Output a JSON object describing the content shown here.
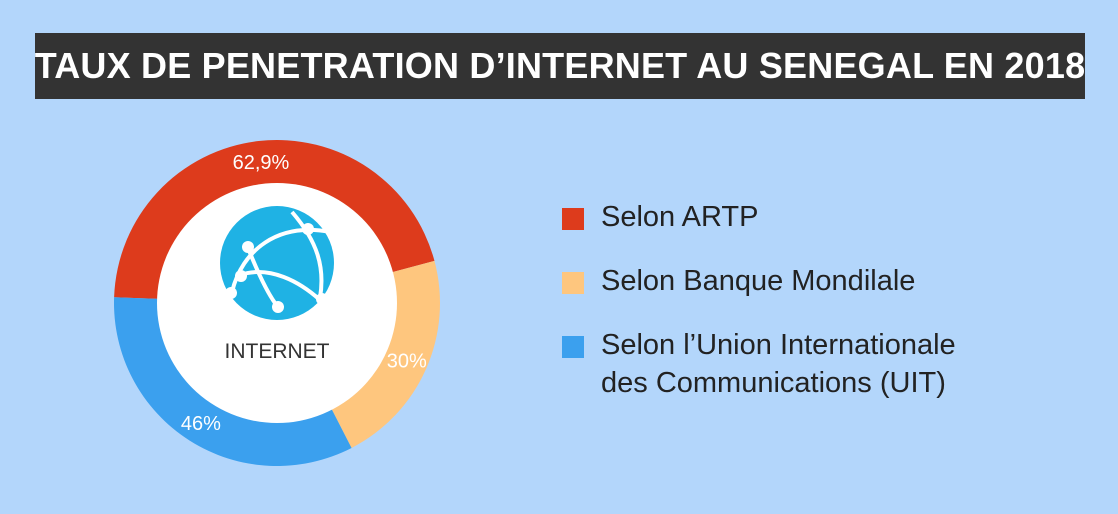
{
  "header": {
    "title": "TAUX DE PENETRATION D’INTERNET AU SENEGAL EN 2018"
  },
  "center": {
    "label": "INTERNET",
    "icon": "globe-network-icon"
  },
  "chart_data": {
    "type": "pie",
    "variant": "donut",
    "title": "TAUX DE PENETRATION D’INTERNET AU SENEGAL EN 2018",
    "slices": [
      {
        "name": "Selon ARTP",
        "value": 62.9,
        "label": "62,9%",
        "color": "#dd3b1c"
      },
      {
        "name": "Selon Banque Mondilale",
        "value": 30,
        "label": "30%",
        "color": "#fec67e"
      },
      {
        "name": "Selon l’Union Internationale\ndes Communications (UIT)",
        "value": 46,
        "label": "46%",
        "color": "#3ba0ee"
      }
    ],
    "legend": "right"
  },
  "colors": {
    "background": "#b3d6fb",
    "title_bar": "#333333",
    "globe": "#1fb2e4"
  }
}
